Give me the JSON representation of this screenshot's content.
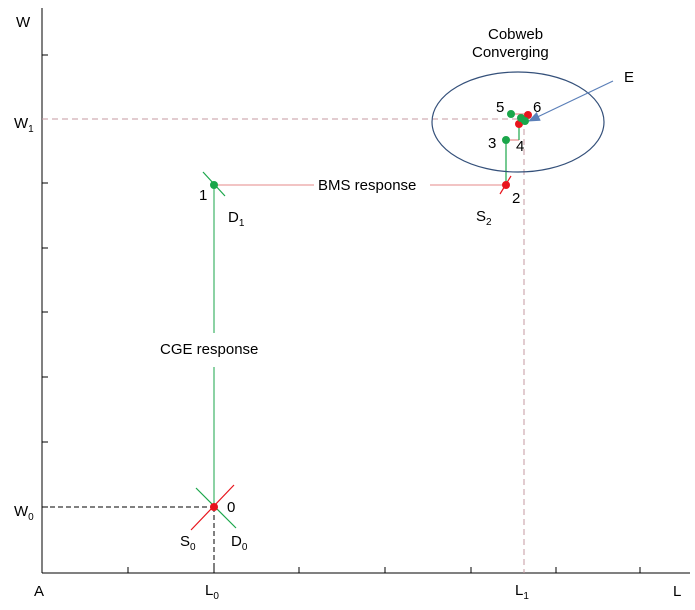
{
  "axes": {
    "y_name": "W",
    "x_name": "L",
    "origin": "A",
    "y_ticks": [
      {
        "base": "W",
        "sub": "1"
      },
      {
        "base": "W",
        "sub": "0"
      }
    ],
    "x_ticks": [
      {
        "base": "L",
        "sub": "0"
      },
      {
        "base": "L",
        "sub": "1"
      }
    ]
  },
  "curves": {
    "S0": {
      "base": "S",
      "sub": "0"
    },
    "D0": {
      "base": "D",
      "sub": "0"
    },
    "D1": {
      "base": "D",
      "sub": "1"
    },
    "S2": {
      "base": "S",
      "sub": "2"
    }
  },
  "points": [
    "0",
    "1",
    "2",
    "3",
    "4",
    "5",
    "6"
  ],
  "labels": {
    "cge_response": "CGE response",
    "bms_response": "BMS response",
    "cobweb_line1": "Cobweb",
    "cobweb_line2": "Converging",
    "equilibrium": "E"
  },
  "colors": {
    "axis": "#000000",
    "demand_point": "#1aa64a",
    "supply_point": "#e8141c",
    "response_cge": "#1aa64a",
    "response_bms": "#e58a8a",
    "reference_dashed": "#c49aa0",
    "ellipse": "#34507a",
    "arrow": "#5b7fb8"
  }
}
